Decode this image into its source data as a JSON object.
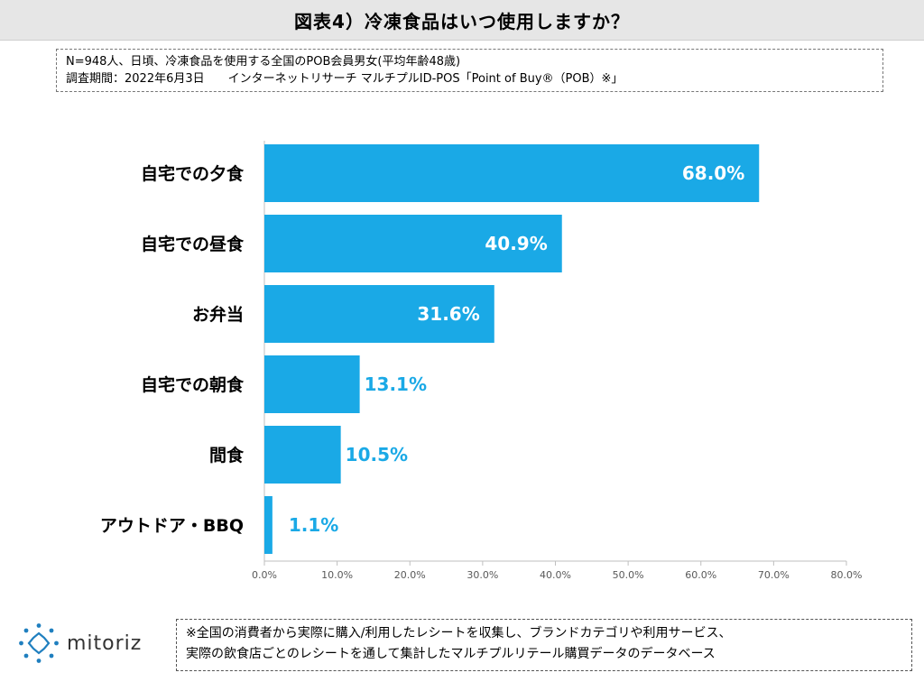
{
  "header": {
    "title": "図表4）冷凍食品はいつ使用しますか？"
  },
  "info": {
    "line1": "N=948人、日頃、冷凍食品を使用する全国のPOB会員男女(平均年齢48歳)",
    "line2": "調査期間：2022年6月3日　　インターネットリサーチ マルチプルID-POS「Point of Buy®（POB）※」"
  },
  "chart_data": {
    "type": "bar",
    "orientation": "horizontal",
    "categories": [
      "自宅での夕食",
      "自宅での昼食",
      "お弁当",
      "自宅での朝食",
      "間食",
      "アウトドア・BBQ"
    ],
    "values": [
      68.0,
      40.9,
      31.6,
      13.1,
      10.5,
      1.1
    ],
    "value_labels": [
      "68.0%",
      "40.9%",
      "31.6%",
      "13.1%",
      "10.5%",
      "1.1%"
    ],
    "xlim": [
      0,
      80
    ],
    "xticks": [
      "0.0%",
      "10.0%",
      "20.0%",
      "30.0%",
      "40.0%",
      "50.0%",
      "60.0%",
      "70.0%",
      "80.0%"
    ],
    "bar_color": "#1aa9e6",
    "label_inside_color": "#ffffff",
    "label_outside_color": "#1aa9e6",
    "grid": false
  },
  "footer": {
    "logo_text": "mitoriz",
    "logo_color": "#1f7fbf",
    "logo_icon": "sun-burst-icon",
    "note_line1": "※全国の消費者から実際に購入/利用したレシートを収集し、ブランドカテゴリや利用サービス、",
    "note_line2": "実際の飲食店ごとのレシートを通して集計したマルチプルリテール購買データのデータベース"
  }
}
